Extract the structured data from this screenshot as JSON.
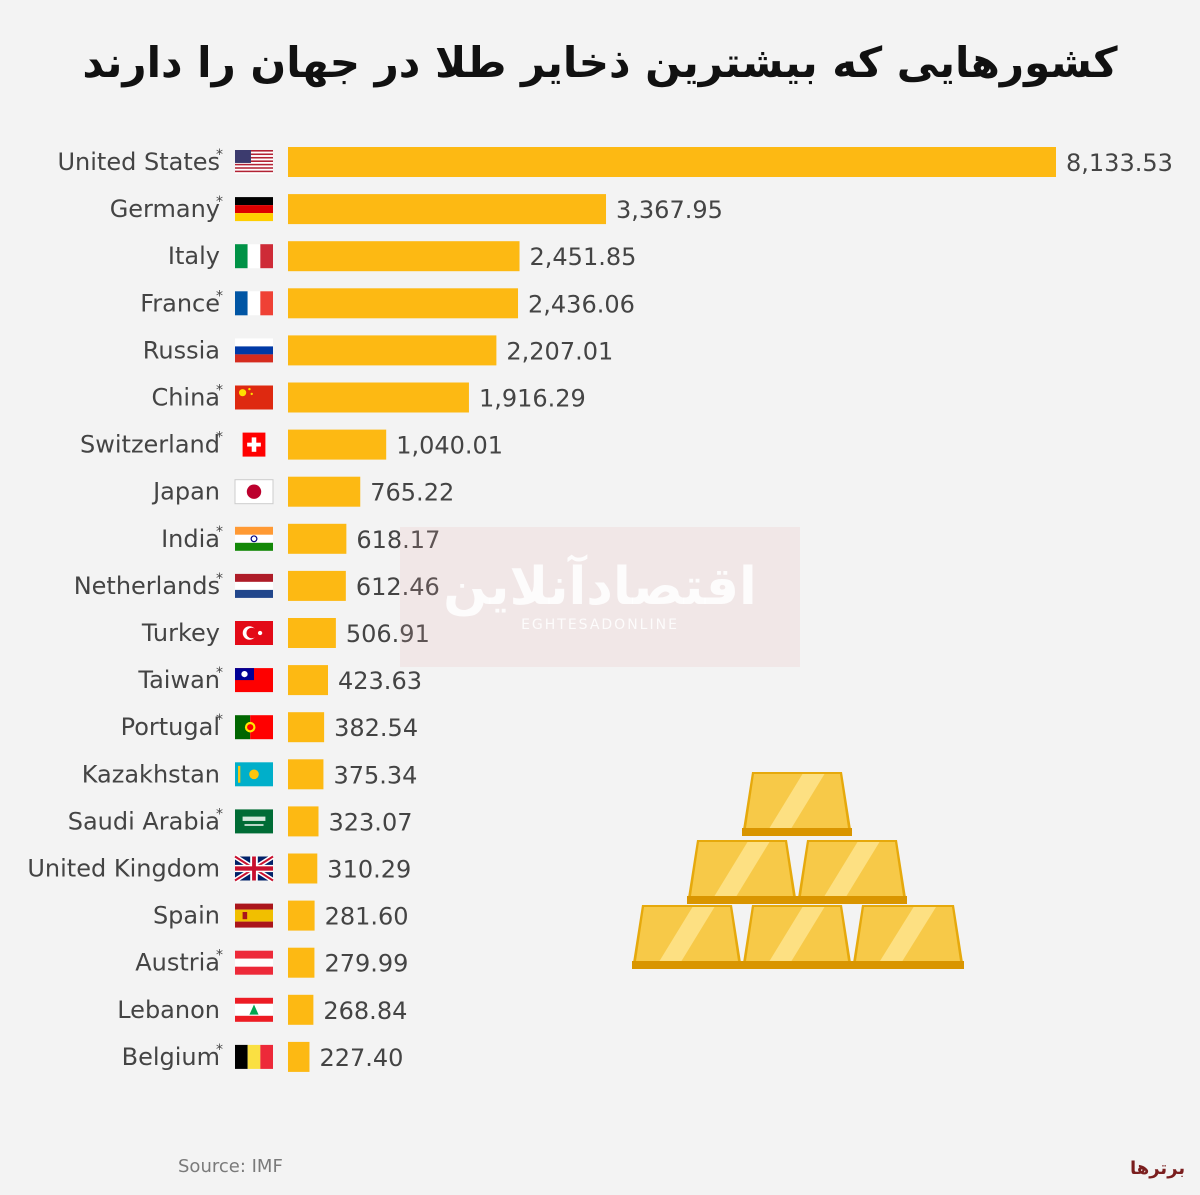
{
  "title": "کشورهایی که بیشترین ذخایر طلا در جهان را دارند",
  "source": "Source: IMF",
  "watermark": {
    "text": "اقتصادآنلاین",
    "subtext": "EGHTESADONLINE"
  },
  "corner_logo": "برترها",
  "colors": {
    "bar": "#FDB913",
    "background": "#F3F3F3",
    "gold": "#F5C83A"
  },
  "chart_data": {
    "type": "bar",
    "orientation": "horizontal",
    "title": "کشورهایی که بیشترین ذخایر طلا در جهان را دارند",
    "xlabel": "",
    "ylabel": "",
    "grid": false,
    "categories": [
      "United States",
      "Germany",
      "Italy",
      "France",
      "Russia",
      "China",
      "Switzerland",
      "Japan",
      "India",
      "Netherlands",
      "Turkey",
      "Taiwan",
      "Portugal",
      "Kazakhstan",
      "Saudi Arabia",
      "United Kingdom",
      "Spain",
      "Austria",
      "Lebanon",
      "Belgium"
    ],
    "values": [
      8133.53,
      3367.95,
      2451.85,
      2436.06,
      2207.01,
      1916.29,
      1040.01,
      765.22,
      618.17,
      612.46,
      506.91,
      423.63,
      382.54,
      375.34,
      323.07,
      310.29,
      281.6,
      279.99,
      268.84,
      227.4
    ],
    "value_labels": [
      "8,133.53",
      "3,367.95",
      "2,451.85",
      "2,436.06",
      "2,207.01",
      "1,916.29",
      "1,040.01",
      "765.22",
      "618.17",
      "612.46",
      "506.91",
      "423.63",
      "382.54",
      "375.34",
      "323.07",
      "310.29",
      "281.60",
      "279.99",
      "268.84",
      "227.40"
    ],
    "asterisk": [
      true,
      true,
      false,
      true,
      false,
      true,
      true,
      false,
      true,
      true,
      false,
      true,
      true,
      false,
      true,
      false,
      false,
      true,
      false,
      true
    ],
    "flags": [
      "us",
      "de",
      "it",
      "fr",
      "ru",
      "cn",
      "ch",
      "jp",
      "in",
      "nl",
      "tr",
      "tw",
      "pt",
      "kz",
      "sa",
      "gb",
      "es",
      "at",
      "lb",
      "be"
    ]
  }
}
